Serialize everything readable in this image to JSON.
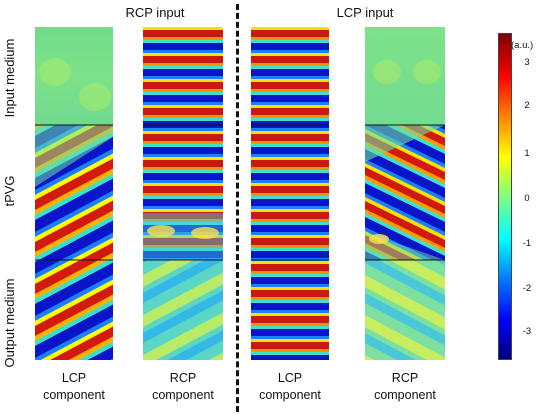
{
  "headers": {
    "rcp_input": "RCP input",
    "lcp_input": "LCP input"
  },
  "row_labels": {
    "input_medium": "Input medium",
    "tpvg": "tPVG",
    "output_medium": "Output medium"
  },
  "column_labels": [
    {
      "line1": "LCP",
      "line2": "component"
    },
    {
      "line1": "RCP",
      "line2": "component"
    },
    {
      "line1": "LCP",
      "line2": "component"
    },
    {
      "line1": "RCP",
      "line2": "component"
    }
  ],
  "colorbar": {
    "unit": "(a.u.)",
    "ticks": [
      "3",
      "2",
      "1",
      "0",
      "-1",
      "-2",
      "-3"
    ]
  },
  "colors": {
    "red": "#c81a12",
    "dark_red": "#7f0000",
    "blue": "#0a14c8",
    "dark_blue": "#00007f",
    "cyan": "#3cd0e8",
    "green": "#8ee06a",
    "yellow": "#f0e23a"
  }
}
